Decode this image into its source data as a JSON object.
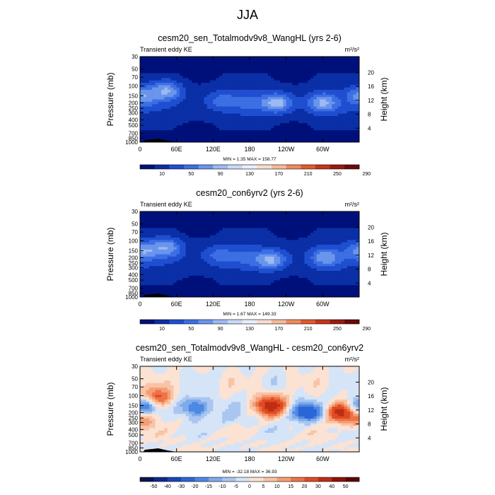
{
  "figure_title": "JJA",
  "chart_data": [
    {
      "type": "heatmap",
      "title": "cesm20_sen_Totalmodv9v8_WangHL (yrs 2-6)",
      "subtitle_left": "Transient eddy KE",
      "units": "m²/s²",
      "ylabel": "Pressure (mb)",
      "ylabel_right": "Height (km)",
      "x_ticks": [
        "0",
        "60E",
        "120E",
        "180",
        "120W",
        "60W"
      ],
      "y_ticks": [
        "30",
        "50",
        "70",
        "100",
        "150",
        "200",
        "250",
        "300",
        "400",
        "500",
        "700",
        "850",
        "1000"
      ],
      "height_ticks": [
        "20",
        "16",
        "12",
        "8",
        "4"
      ],
      "minmax_label": "MIN =   1.35  MAX = 158.77",
      "colorbar_labels": [
        "10",
        "50",
        "90",
        "130",
        "170",
        "210",
        "250",
        "290"
      ],
      "colorbar_colors": [
        "#00107a",
        "#0a2fa6",
        "#1f4fd0",
        "#3c6fe3",
        "#6a95ec",
        "#9dbaf2",
        "#c9d9f7",
        "#e8effb",
        "#f7ddcf",
        "#f6b99a",
        "#f08a5e",
        "#e25a2b",
        "#c6351a",
        "#9a1a0f",
        "#6b0a08"
      ],
      "blobs": [
        {
          "lon": 45,
          "p": 120,
          "value": 140
        },
        {
          "lon": 5,
          "p": 150,
          "value": 115
        },
        {
          "lon": 225,
          "p": 200,
          "value": 160
        },
        {
          "lon": 300,
          "p": 200,
          "value": 135
        },
        {
          "lon": 135,
          "p": 180,
          "value": 70
        },
        {
          "lon": 180,
          "p": 200,
          "value": 55
        }
      ]
    },
    {
      "type": "heatmap",
      "title": "cesm20_con6yrv2 (yrs 2-6)",
      "subtitle_left": "Transient eddy KE",
      "units": "m²/s²",
      "ylabel": "Pressure (mb)",
      "ylabel_right": "Height (km)",
      "x_ticks": [
        "0",
        "60E",
        "120E",
        "180",
        "120W",
        "60W"
      ],
      "y_ticks": [
        "30",
        "50",
        "70",
        "100",
        "150",
        "200",
        "250",
        "300",
        "400",
        "500",
        "700",
        "850",
        "1000"
      ],
      "height_ticks": [
        "20",
        "16",
        "12",
        "8",
        "4"
      ],
      "minmax_label": "MIN =   1.67  MAX = 149.33",
      "colorbar_labels": [
        "10",
        "50",
        "90",
        "130",
        "170",
        "210",
        "250",
        "290"
      ],
      "colorbar_colors": [
        "#00107a",
        "#0a2fa6",
        "#1f4fd0",
        "#3c6fe3",
        "#6a95ec",
        "#9dbaf2",
        "#c9d9f7",
        "#e8effb",
        "#f7ddcf",
        "#f6b99a",
        "#f08a5e",
        "#e25a2b",
        "#c6351a",
        "#9a1a0f",
        "#6b0a08"
      ],
      "blobs": [
        {
          "lon": 45,
          "p": 130,
          "value": 130
        },
        {
          "lon": 5,
          "p": 150,
          "value": 120
        },
        {
          "lon": 215,
          "p": 220,
          "value": 140
        },
        {
          "lon": 305,
          "p": 200,
          "value": 120
        },
        {
          "lon": 130,
          "p": 180,
          "value": 70
        },
        {
          "lon": 175,
          "p": 200,
          "value": 50
        }
      ]
    },
    {
      "type": "heatmap",
      "title": "cesm20_sen_Totalmodv9v8_WangHL - cesm20_con6yrv2",
      "subtitle_left": "Transient eddy KE",
      "units": "m²/s²",
      "ylabel": "Pressure (mb)",
      "ylabel_right": "Height (km)",
      "x_ticks": [
        "0",
        "60E",
        "120E",
        "180",
        "120W",
        "60W"
      ],
      "y_ticks": [
        "30",
        "50",
        "70",
        "100",
        "150",
        "200",
        "250",
        "300",
        "400",
        "500",
        "700",
        "850",
        "1000"
      ],
      "height_ticks": [
        "20",
        "16",
        "12",
        "8",
        "4"
      ],
      "minmax_label": "MIN = -32.18  MAX =  36.93",
      "colorbar_labels": [
        "-50",
        "-40",
        "-30",
        "-20",
        "-15",
        "-10",
        "-5",
        "0",
        "5",
        "10",
        "15",
        "20",
        "30",
        "40",
        "50"
      ],
      "colorbar_colors": [
        "#08154f",
        "#0b2a8a",
        "#1846b8",
        "#2a66d6",
        "#4d88e2",
        "#7eaaea",
        "#a8c6f0",
        "#d6e4f7",
        "#fbe2d3",
        "#f9c3a6",
        "#f59d74",
        "#ee7245",
        "#e04b23",
        "#bf2d13",
        "#8e1208",
        "#5c0705"
      ],
      "blobs": [
        {
          "lon": 25,
          "p": 110,
          "value": 28
        },
        {
          "lon": 5,
          "p": 150,
          "value": -28
        },
        {
          "lon": 90,
          "p": 160,
          "value": -25
        },
        {
          "lon": 215,
          "p": 150,
          "value": 35
        },
        {
          "lon": 268,
          "p": 200,
          "value": -22
        },
        {
          "lon": 292,
          "p": 200,
          "value": -10
        },
        {
          "lon": 328,
          "p": 200,
          "value": 33
        },
        {
          "lon": 2,
          "p": 260,
          "value": 14
        },
        {
          "lon": 150,
          "p": 250,
          "value": -6
        }
      ]
    }
  ]
}
